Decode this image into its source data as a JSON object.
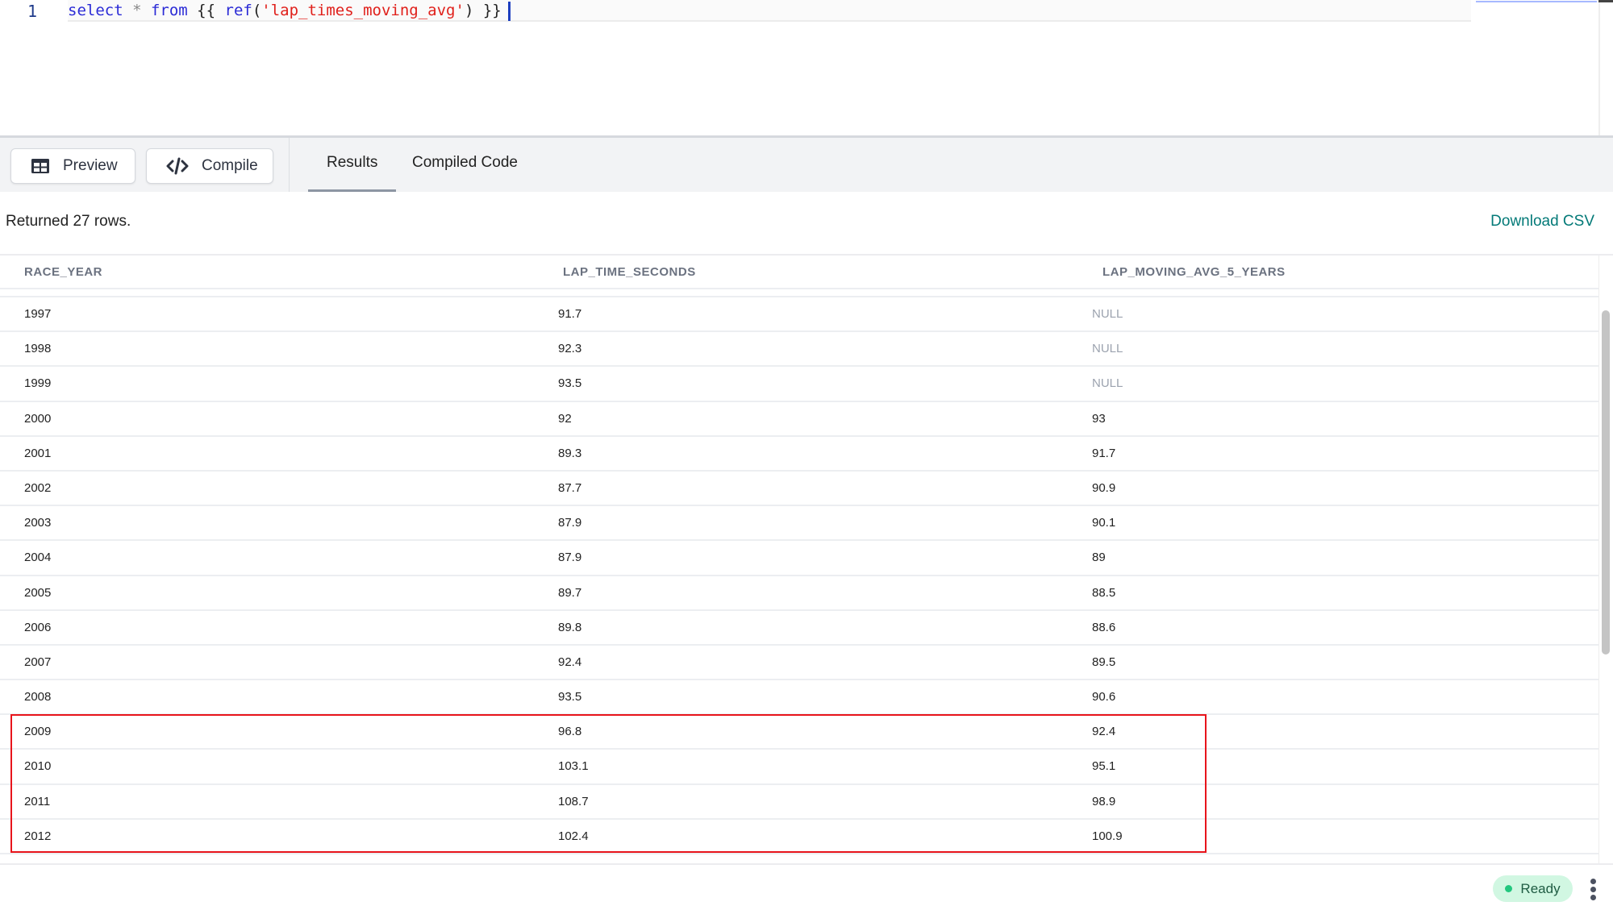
{
  "editor": {
    "line_number": "1",
    "code": {
      "kw1": "select",
      "op": " * ",
      "kw2": "from",
      "open": " {{ ",
      "fn": "ref",
      "paren_open": "(",
      "string": "'lap_times_moving_avg'",
      "close": ") }}"
    }
  },
  "toolbar": {
    "preview_label": "Preview",
    "preview_icon": "table-icon",
    "compile_label": "Compile",
    "compile_icon": "code-icon",
    "tabs": [
      {
        "label": "Results",
        "active": true
      },
      {
        "label": "Compiled Code",
        "active": false
      }
    ]
  },
  "results": {
    "summary": "Returned 27 rows.",
    "download_label": "Download CSV",
    "columns": [
      "RACE_YEAR",
      "LAP_TIME_SECONDS",
      "LAP_MOVING_AVG_5_YEARS"
    ],
    "rows": [
      [
        "1997",
        "91.7",
        "NULL"
      ],
      [
        "1998",
        "92.3",
        "NULL"
      ],
      [
        "1999",
        "93.5",
        "NULL"
      ],
      [
        "2000",
        "92",
        "93"
      ],
      [
        "2001",
        "89.3",
        "91.7"
      ],
      [
        "2002",
        "87.7",
        "90.9"
      ],
      [
        "2003",
        "87.9",
        "90.1"
      ],
      [
        "2004",
        "87.9",
        "89"
      ],
      [
        "2005",
        "89.7",
        "88.5"
      ],
      [
        "2006",
        "89.8",
        "88.6"
      ],
      [
        "2007",
        "92.4",
        "89.5"
      ],
      [
        "2008",
        "93.5",
        "90.6"
      ],
      [
        "2009",
        "96.8",
        "92.4"
      ],
      [
        "2010",
        "103.1",
        "95.1"
      ],
      [
        "2011",
        "108.7",
        "98.9"
      ],
      [
        "2012",
        "102.4",
        "100.9"
      ]
    ],
    "highlighted_years": [
      "2009",
      "2010",
      "2011",
      "2012"
    ],
    "highlight_color": "#e8141b"
  },
  "status": {
    "label": "Ready",
    "color": "#22c77e"
  }
}
